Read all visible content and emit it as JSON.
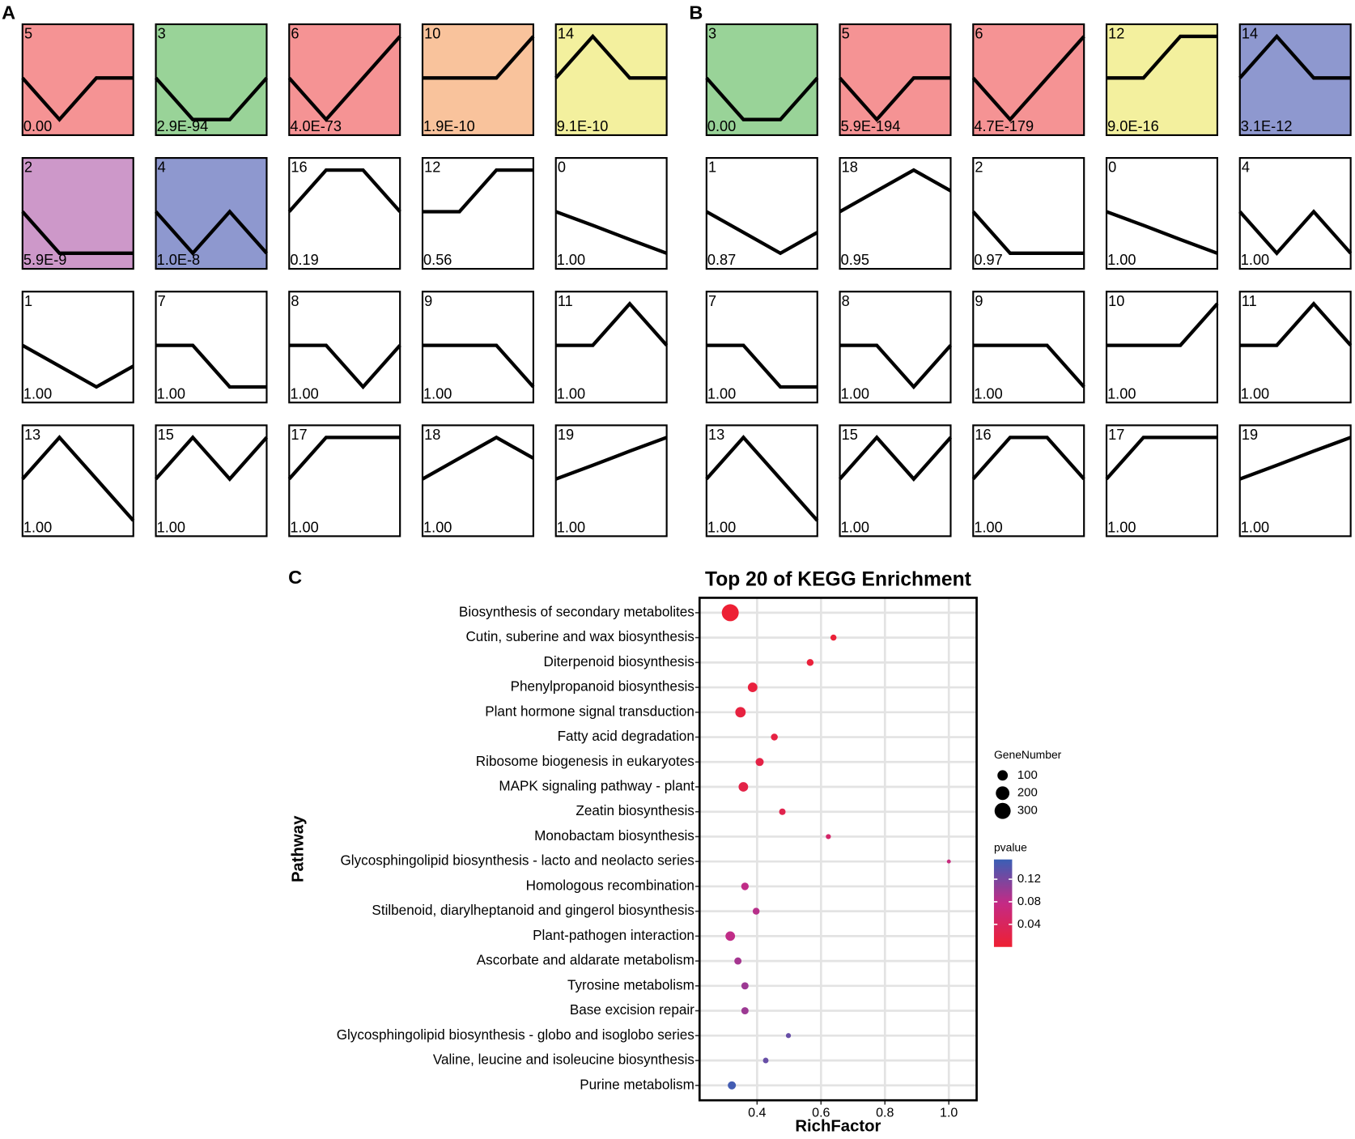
{
  "panel_a": {
    "label": "A",
    "profiles": [
      {
        "id": "5",
        "pvalue": "0.00",
        "color": "#f59394",
        "values": [
          0,
          -1,
          0,
          0
        ]
      },
      {
        "id": "3",
        "pvalue": "2.9E-94",
        "color": "#99d398",
        "values": [
          0,
          -1,
          -1,
          0
        ]
      },
      {
        "id": "6",
        "pvalue": "4.0E-73",
        "color": "#f59394",
        "values": [
          0,
          -1,
          0,
          1
        ]
      },
      {
        "id": "10",
        "pvalue": "1.9E-10",
        "color": "#f9c39c",
        "values": [
          0,
          0,
          0,
          1
        ]
      },
      {
        "id": "14",
        "pvalue": "9.1E-10",
        "color": "#f3f09e",
        "values": [
          0,
          1,
          0,
          0
        ]
      },
      {
        "id": "2",
        "pvalue": "5.9E-9",
        "color": "#cd98c9",
        "values": [
          0,
          -1,
          -1,
          -1
        ]
      },
      {
        "id": "4",
        "pvalue": "1.0E-8",
        "color": "#8e98cf",
        "values": [
          0,
          -1,
          0,
          -1
        ]
      },
      {
        "id": "16",
        "pvalue": "0.19",
        "color": "#ffffff",
        "values": [
          0,
          1,
          1,
          0
        ]
      },
      {
        "id": "12",
        "pvalue": "0.56",
        "color": "#ffffff",
        "values": [
          0,
          0,
          1,
          1
        ]
      },
      {
        "id": "0",
        "pvalue": "1.00",
        "color": "#ffffff",
        "values": [
          0,
          -0.33,
          -0.67,
          -1
        ]
      },
      {
        "id": "1",
        "pvalue": "1.00",
        "color": "#ffffff",
        "values": [
          0,
          -0.5,
          -1,
          -0.5
        ]
      },
      {
        "id": "7",
        "pvalue": "1.00",
        "color": "#ffffff",
        "values": [
          0,
          0,
          -1,
          -1
        ]
      },
      {
        "id": "8",
        "pvalue": "1.00",
        "color": "#ffffff",
        "values": [
          0,
          0,
          -1,
          0
        ]
      },
      {
        "id": "9",
        "pvalue": "1.00",
        "color": "#ffffff",
        "values": [
          0,
          0,
          0,
          -1
        ]
      },
      {
        "id": "11",
        "pvalue": "1.00",
        "color": "#ffffff",
        "values": [
          0,
          0,
          1,
          0
        ]
      },
      {
        "id": "13",
        "pvalue": "1.00",
        "color": "#ffffff",
        "values": [
          0,
          1,
          0,
          -1
        ]
      },
      {
        "id": "15",
        "pvalue": "1.00",
        "color": "#ffffff",
        "values": [
          0,
          1,
          0,
          1
        ]
      },
      {
        "id": "17",
        "pvalue": "1.00",
        "color": "#ffffff",
        "values": [
          0,
          1,
          1,
          1
        ]
      },
      {
        "id": "18",
        "pvalue": "1.00",
        "color": "#ffffff",
        "values": [
          0,
          0.5,
          1,
          0.5
        ]
      },
      {
        "id": "19",
        "pvalue": "1.00",
        "color": "#ffffff",
        "values": [
          0,
          0.33,
          0.67,
          1
        ]
      }
    ]
  },
  "panel_b": {
    "label": "B",
    "profiles": [
      {
        "id": "3",
        "pvalue": "0.00",
        "color": "#99d398",
        "values": [
          0,
          -1,
          -1,
          0
        ]
      },
      {
        "id": "5",
        "pvalue": "5.9E-194",
        "color": "#f59394",
        "values": [
          0,
          -1,
          0,
          0
        ]
      },
      {
        "id": "6",
        "pvalue": "4.7E-179",
        "color": "#f59394",
        "values": [
          0,
          -1,
          0,
          1
        ]
      },
      {
        "id": "12",
        "pvalue": "9.0E-16",
        "color": "#f3f09e",
        "values": [
          0,
          0,
          1,
          1
        ]
      },
      {
        "id": "14",
        "pvalue": "3.1E-12",
        "color": "#8e98cf",
        "values": [
          0,
          1,
          0,
          0
        ]
      },
      {
        "id": "1",
        "pvalue": "0.87",
        "color": "#ffffff",
        "values": [
          0,
          -0.5,
          -1,
          -0.5
        ]
      },
      {
        "id": "18",
        "pvalue": "0.95",
        "color": "#ffffff",
        "values": [
          0,
          0.5,
          1,
          0.5
        ]
      },
      {
        "id": "2",
        "pvalue": "0.97",
        "color": "#ffffff",
        "values": [
          0,
          -1,
          -1,
          -1
        ]
      },
      {
        "id": "0",
        "pvalue": "1.00",
        "color": "#ffffff",
        "values": [
          0,
          -0.33,
          -0.67,
          -1
        ]
      },
      {
        "id": "4",
        "pvalue": "1.00",
        "color": "#ffffff",
        "values": [
          0,
          -1,
          0,
          -1
        ]
      },
      {
        "id": "7",
        "pvalue": "1.00",
        "color": "#ffffff",
        "values": [
          0,
          0,
          -1,
          -1
        ]
      },
      {
        "id": "8",
        "pvalue": "1.00",
        "color": "#ffffff",
        "values": [
          0,
          0,
          -1,
          0
        ]
      },
      {
        "id": "9",
        "pvalue": "1.00",
        "color": "#ffffff",
        "values": [
          0,
          0,
          0,
          -1
        ]
      },
      {
        "id": "10",
        "pvalue": "1.00",
        "color": "#ffffff",
        "values": [
          0,
          0,
          0,
          1
        ]
      },
      {
        "id": "11",
        "pvalue": "1.00",
        "color": "#ffffff",
        "values": [
          0,
          0,
          1,
          0
        ]
      },
      {
        "id": "13",
        "pvalue": "1.00",
        "color": "#ffffff",
        "values": [
          0,
          1,
          0,
          -1
        ]
      },
      {
        "id": "15",
        "pvalue": "1.00",
        "color": "#ffffff",
        "values": [
          0,
          1,
          0,
          1
        ]
      },
      {
        "id": "16",
        "pvalue": "1.00",
        "color": "#ffffff",
        "values": [
          0,
          1,
          1,
          0
        ]
      },
      {
        "id": "17",
        "pvalue": "1.00",
        "color": "#ffffff",
        "values": [
          0,
          1,
          1,
          1
        ]
      },
      {
        "id": "19",
        "pvalue": "1.00",
        "color": "#ffffff",
        "values": [
          0,
          0.33,
          0.67,
          1
        ]
      }
    ]
  },
  "chart_data": {
    "type": "scatter",
    "panel_label": "C",
    "title": "Top 20 of KEGG Enrichment",
    "x_label": "RichFactor",
    "y_label": "Pathway",
    "categories": [
      "Biosynthesis of secondary metabolites",
      "Cutin, suberine and wax biosynthesis",
      "Diterpenoid biosynthesis",
      "Phenylpropanoid biosynthesis",
      "Plant hormone signal transduction",
      "Fatty acid degradation",
      "Ribosome biogenesis in eukaryotes",
      "MAPK signaling pathway - plant",
      "Zeatin biosynthesis",
      "Monobactam biosynthesis",
      "Glycosphingolipid biosynthesis - lacto and neolacto series",
      "Homologous recombination",
      "Stilbenoid, diarylheptanoid and gingerol biosynthesis",
      "Plant-pathogen interaction",
      "Ascorbate and aldarate metabolism",
      "Tyrosine metabolism",
      "Base excision repair",
      "Glycosphingolipid biosynthesis - globo and isoglobo series",
      "Valine, leucine and isoleucine biosynthesis",
      "Purine metabolism"
    ],
    "values": [
      0.316,
      0.639,
      0.566,
      0.386,
      0.348,
      0.454,
      0.408,
      0.357,
      0.479,
      0.623,
      1.0,
      0.362,
      0.397,
      0.316,
      0.34,
      0.362,
      0.362,
      0.498,
      0.427,
      0.321
    ],
    "sizes": [
      340,
      20,
      30,
      80,
      100,
      30,
      50,
      80,
      25,
      10,
      3,
      40,
      30,
      80,
      35,
      35,
      35,
      10,
      15,
      50
    ],
    "pvalues": [
      0.001,
      0.005,
      0.008,
      0.01,
      0.012,
      0.015,
      0.018,
      0.02,
      0.025,
      0.05,
      0.07,
      0.08,
      0.085,
      0.08,
      0.095,
      0.1,
      0.1,
      0.13,
      0.13,
      0.15
    ],
    "xlim": [
      0.22,
      1.087
    ],
    "xticks": [
      0.4,
      0.6,
      0.8,
      {
        "value": 1.0,
        "label": "1.0"
      }
    ],
    "grid": true,
    "size_legend": {
      "title": "GeneNumber",
      "ticks": [
        100,
        200,
        300
      ]
    },
    "color_legend": {
      "title": "pvalue",
      "lim": [
        0,
        0.155
      ],
      "ticks": [
        0.04,
        0.08,
        0.12
      ],
      "low": "#ee2033",
      "mid": "#c42a85",
      "high": "#3a5fb5"
    }
  }
}
